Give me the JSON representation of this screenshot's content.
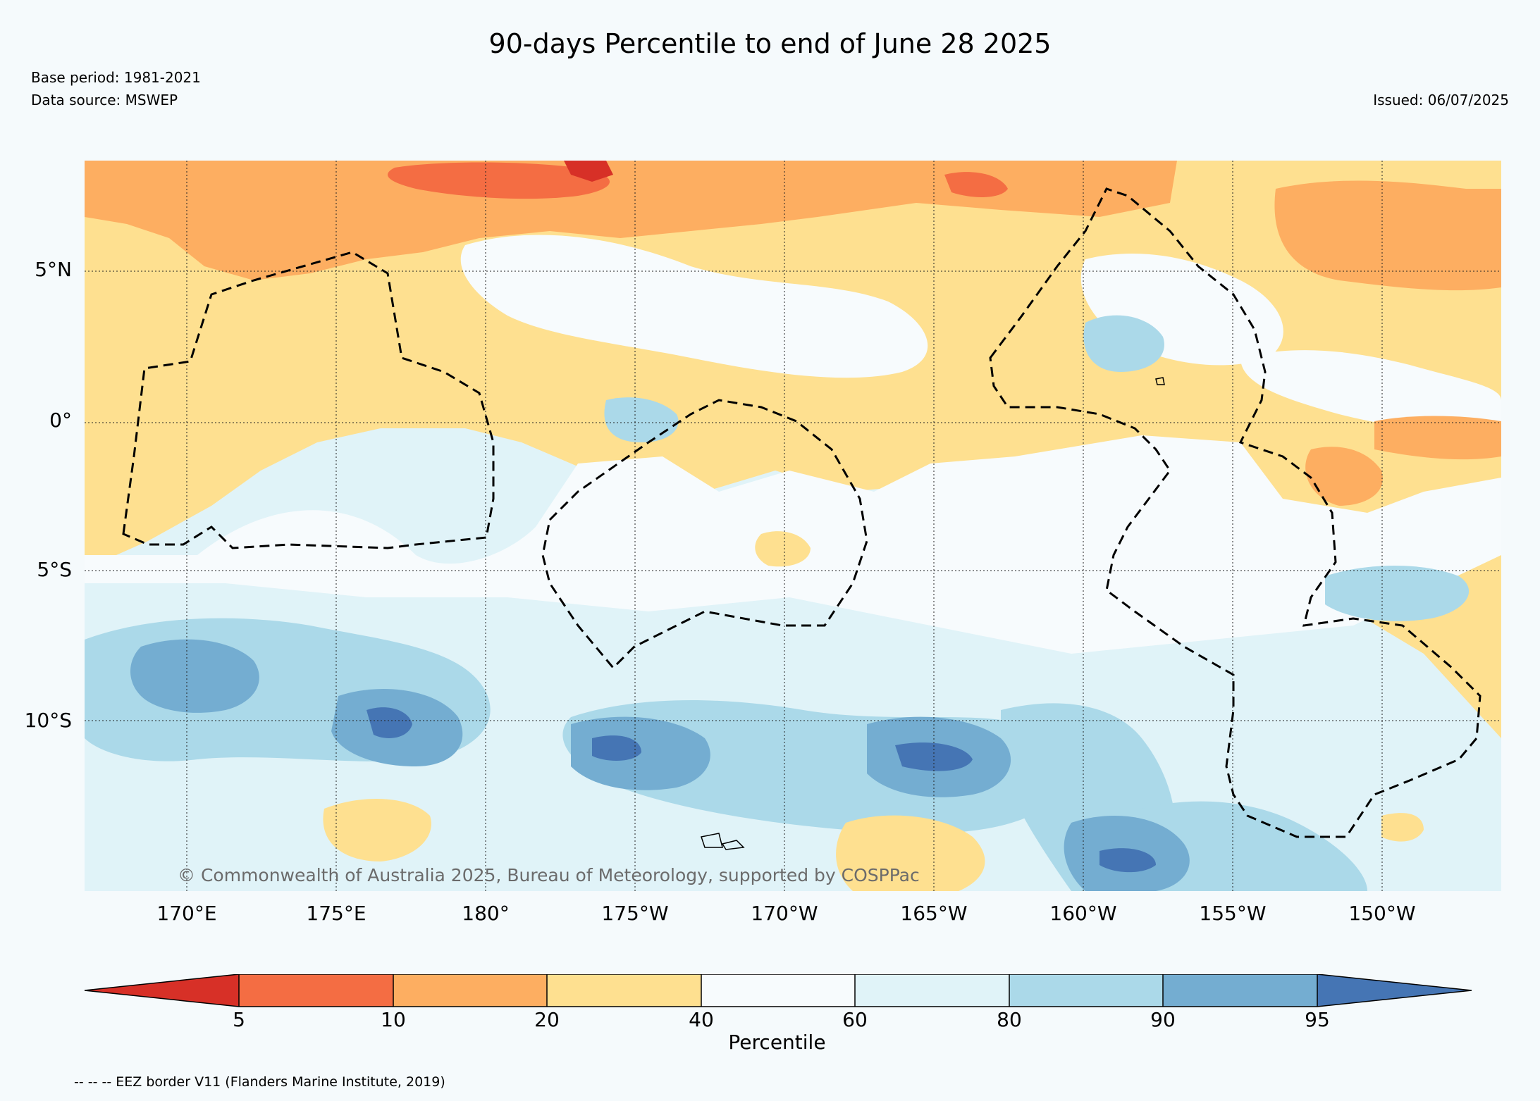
{
  "header": {
    "title": "90-days Percentile to end of June 28 2025",
    "base_period": "Base period: 1981-2021",
    "data_source": "Data source: MSWEP",
    "issued": "Issued: 06/07/2025"
  },
  "map": {
    "lat_labels": [
      "5°N",
      "0°",
      "5°S",
      "10°S"
    ],
    "lon_labels": [
      "170°E",
      "175°E",
      "180°",
      "175°W",
      "170°W",
      "165°W",
      "160°W",
      "155°W",
      "150°W"
    ],
    "copyright": "© Commonwealth of Australia 2025, Bureau of Meteorology, supported by COSPPac",
    "grid": true,
    "boundary_style": "dashed"
  },
  "legend": {
    "ticks": [
      "5",
      "10",
      "20",
      "40",
      "60",
      "80",
      "90",
      "95"
    ],
    "label": "Percentile",
    "colors": [
      "#d73027",
      "#f46d43",
      "#fdae61",
      "#fee090",
      "#f7fbfd",
      "#e0f3f8",
      "#abd9e9",
      "#74add1",
      "#4575b4"
    ]
  },
  "footnote": "-- -- -- EEZ border V11 (Flanders Marine Institute, 2019)"
}
